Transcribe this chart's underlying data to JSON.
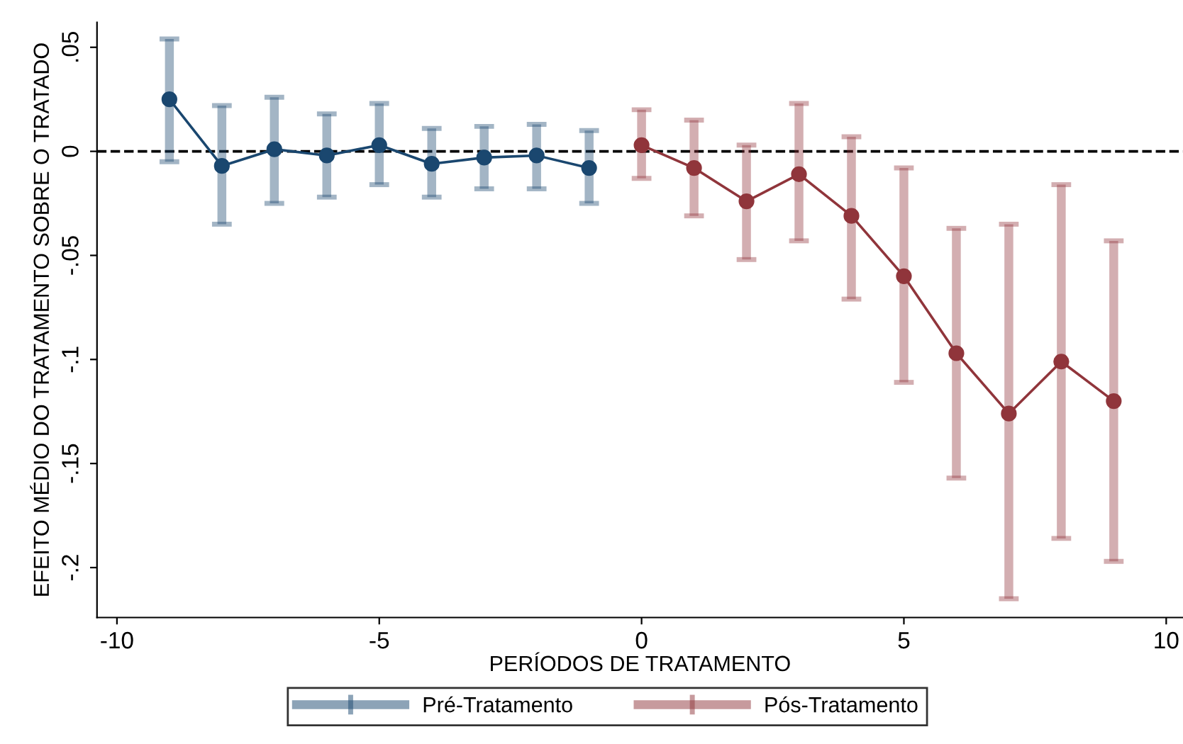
{
  "chart_data": {
    "type": "line",
    "xlabel": "PERÍODOS DE TRATAMENTO",
    "ylabel": "EFEITO MÉDIO DO TRATAMENTO SOBRE O TRATADO",
    "series": [
      {
        "name": "Pré-Tratamento",
        "color": "#1a476f",
        "x": [
          -9,
          -8,
          -7,
          -6,
          -5,
          -4,
          -3,
          -2,
          -1
        ],
        "values": [
          0.025,
          -0.007,
          0.001,
          -0.002,
          0.003,
          -0.006,
          -0.003,
          -0.002,
          -0.008
        ],
        "errors": [
          [
            -0.005,
            0.054
          ],
          [
            -0.035,
            0.022
          ],
          [
            -0.025,
            0.026
          ],
          [
            -0.022,
            0.018
          ],
          [
            -0.016,
            0.023
          ],
          [
            -0.022,
            0.011
          ],
          [
            -0.018,
            0.012
          ],
          [
            -0.018,
            0.013
          ],
          [
            -0.025,
            0.01
          ]
        ]
      },
      {
        "name": "Pós-Tratamento",
        "color": "#90353b",
        "x": [
          0,
          1,
          2,
          3,
          4,
          5,
          6,
          7,
          8,
          9
        ],
        "values": [
          0.003,
          -0.008,
          -0.024,
          -0.011,
          -0.031,
          -0.06,
          -0.097,
          -0.126,
          -0.101,
          -0.12
        ],
        "errors": [
          [
            -0.013,
            0.02
          ],
          [
            -0.031,
            0.015
          ],
          [
            -0.052,
            0.003
          ],
          [
            -0.043,
            0.023
          ],
          [
            -0.071,
            0.007
          ],
          [
            -0.111,
            -0.008
          ],
          [
            -0.157,
            -0.037
          ],
          [
            -0.215,
            -0.035
          ],
          [
            -0.186,
            -0.016
          ],
          [
            -0.197,
            -0.043
          ]
        ]
      }
    ],
    "xlim": [
      -10.38,
      10.32
    ],
    "ylim": [
      -0.224,
      0.062
    ],
    "xticks": [
      -10,
      -5,
      0,
      5,
      10
    ],
    "yticks": [
      {
        "value": 0.05,
        "label": ".05"
      },
      0,
      {
        "value": -0.05,
        "label": "-.05"
      },
      {
        "value": -0.1,
        "label": "-.1"
      },
      {
        "value": -0.15,
        "label": "-.15"
      },
      {
        "value": -0.2,
        "label": "-.2"
      }
    ],
    "ref_lines": [
      {
        "axis": "y",
        "value": 0,
        "color": "#000000",
        "line_style": "dashed"
      }
    ],
    "marker": "circle",
    "line_style": "solid",
    "grid": false,
    "legend": "bottom"
  }
}
